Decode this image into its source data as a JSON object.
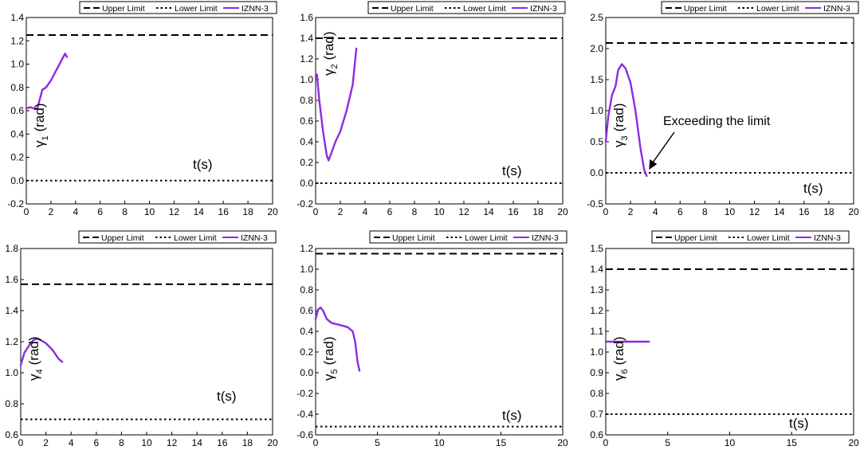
{
  "chart_data": [
    {
      "type": "line",
      "legend": [
        "Upper Limit",
        "Lower Limit",
        "IZNN-3"
      ],
      "legend_placement": "top",
      "xlabel": "t(s)",
      "ylabel": "γ1 (rad)",
      "ylabel_parts": {
        "sym": "γ",
        "sub": "1",
        "unit": "(rad)"
      },
      "xlim": [
        0,
        20
      ],
      "ylim": [
        -0.2,
        1.4
      ],
      "xticks": [
        0,
        2,
        4,
        6,
        8,
        10,
        12,
        14,
        16,
        18,
        20
      ],
      "yticks": [
        "-0.2",
        "0.0",
        "0.2",
        "0.4",
        "0.6",
        "0.8",
        "1.0",
        "1.2",
        "1.4"
      ],
      "upper_limit": 1.25,
      "lower_limit": 0.0,
      "series": [
        {
          "name": "IZNN-3",
          "x": [
            0,
            0.3,
            0.6,
            0.9,
            1.1,
            1.3,
            1.6,
            2.0,
            2.5,
            3.0,
            3.15,
            3.3
          ],
          "y": [
            0.62,
            0.63,
            0.62,
            0.62,
            0.7,
            0.78,
            0.8,
            0.86,
            0.96,
            1.06,
            1.09,
            1.06
          ]
        }
      ],
      "annotations": []
    },
    {
      "type": "line",
      "legend": [
        "Upper Limit",
        "Lower Limit",
        "IZNN-3"
      ],
      "legend_placement": "top",
      "xlabel": "t(s)",
      "ylabel": "γ2 (rad)",
      "ylabel_parts": {
        "sym": "γ",
        "sub": "2",
        "unit": "(rad)"
      },
      "xlim": [
        0,
        20
      ],
      "ylim": [
        -0.2,
        1.6
      ],
      "xticks": [
        0,
        2,
        4,
        6,
        8,
        10,
        12,
        14,
        16,
        18,
        20
      ],
      "yticks": [
        "-0.2",
        "0.0",
        "0.2",
        "0.4",
        "0.6",
        "0.8",
        "1.0",
        "1.2",
        "1.4",
        "1.6"
      ],
      "upper_limit": 1.4,
      "lower_limit": 0.0,
      "series": [
        {
          "name": "IZNN-3",
          "x": [
            0,
            0.1,
            0.3,
            0.6,
            0.9,
            1.05,
            1.3,
            1.6,
            2.0,
            2.5,
            3.0,
            3.3
          ],
          "y": [
            1.03,
            1.05,
            0.8,
            0.5,
            0.27,
            0.22,
            0.3,
            0.4,
            0.5,
            0.7,
            0.95,
            1.3
          ]
        }
      ],
      "annotations": []
    },
    {
      "type": "line",
      "legend": [
        "Upper Limit",
        "Lower Limit",
        "IZNN-3"
      ],
      "legend_placement": "top",
      "xlabel": "t(s)",
      "ylabel": "γ3 (rad)",
      "ylabel_parts": {
        "sym": "γ",
        "sub": "3",
        "unit": "(rad)"
      },
      "xlim": [
        0,
        20
      ],
      "ylim": [
        -0.5,
        2.5
      ],
      "xticks": [
        0,
        2,
        4,
        6,
        8,
        10,
        12,
        14,
        16,
        18,
        20
      ],
      "yticks": [
        "-0.5",
        "0.0",
        "0.5",
        "1.0",
        "1.5",
        "2.0",
        "2.5"
      ],
      "upper_limit": 2.09,
      "lower_limit": 0.0,
      "series": [
        {
          "name": "IZNN-3",
          "x": [
            0,
            0.2,
            0.5,
            0.8,
            1.0,
            1.3,
            1.6,
            2.0,
            2.4,
            2.8,
            3.1,
            3.3
          ],
          "y": [
            0.5,
            0.9,
            1.25,
            1.4,
            1.65,
            1.75,
            1.68,
            1.45,
            1.0,
            0.4,
            0.05,
            -0.05
          ]
        }
      ],
      "annotations": [
        {
          "text": "Exceeding the limit",
          "x": 3.3,
          "y": 0.0
        }
      ]
    },
    {
      "type": "line",
      "legend": [
        "Upper Limit",
        "Lower Limit",
        "IZNN-3"
      ],
      "legend_placement": "top",
      "xlabel": "t(s)",
      "ylabel": "γ4 (rad)",
      "ylabel_parts": {
        "sym": "γ",
        "sub": "4",
        "unit": "(rad)"
      },
      "xlim": [
        0,
        20
      ],
      "ylim": [
        0.6,
        1.8
      ],
      "xticks": [
        0,
        2,
        4,
        6,
        8,
        10,
        12,
        14,
        16,
        18,
        20
      ],
      "yticks": [
        "0.6",
        "0.8",
        "1.0",
        "1.2",
        "1.4",
        "1.6",
        "1.8"
      ],
      "upper_limit": 1.57,
      "lower_limit": 0.7,
      "series": [
        {
          "name": "IZNN-3",
          "x": [
            0,
            0.3,
            0.7,
            1.0,
            1.3,
            1.6,
            2.0,
            2.5,
            3.0,
            3.3
          ],
          "y": [
            1.05,
            1.13,
            1.18,
            1.21,
            1.22,
            1.21,
            1.19,
            1.15,
            1.09,
            1.07
          ]
        }
      ],
      "annotations": []
    },
    {
      "type": "line",
      "legend": [
        "Upper Limit",
        "Lower Limit",
        "IZNN-3"
      ],
      "legend_placement": "top",
      "xlabel": "t(s)",
      "ylabel": "γ5 (rad)",
      "ylabel_parts": {
        "sym": "γ",
        "sub": "5",
        "unit": "(rad)"
      },
      "xlim": [
        0,
        20
      ],
      "ylim": [
        -0.6,
        1.2
      ],
      "xticks": [
        0,
        5,
        10,
        15,
        20
      ],
      "yticks": [
        "-0.6",
        "-0.4",
        "-0.2",
        "0.0",
        "0.2",
        "0.4",
        "0.6",
        "0.8",
        "1.0",
        "1.2"
      ],
      "upper_limit": 1.15,
      "lower_limit": -0.52,
      "series": [
        {
          "name": "IZNN-3",
          "x": [
            0,
            0.2,
            0.4,
            0.6,
            0.9,
            1.3,
            2.0,
            2.6,
            3.0,
            3.2,
            3.4,
            3.55
          ],
          "y": [
            0.52,
            0.61,
            0.63,
            0.6,
            0.52,
            0.48,
            0.46,
            0.44,
            0.4,
            0.3,
            0.1,
            0.02
          ]
        }
      ],
      "annotations": []
    },
    {
      "type": "line",
      "legend": [
        "Upper Limit",
        "Lower Limit",
        "IZNN-3"
      ],
      "legend_placement": "top",
      "xlabel": "t(s)",
      "ylabel": "γ6 (rad)",
      "ylabel_parts": {
        "sym": "γ",
        "sub": "6",
        "unit": "(rad)"
      },
      "xlim": [
        0,
        20
      ],
      "ylim": [
        0.6,
        1.5
      ],
      "xticks": [
        0,
        5,
        10,
        15,
        20
      ],
      "yticks": [
        "0.6",
        "0.7",
        "0.8",
        "0.9",
        "1.0",
        "1.1",
        "1.2",
        "1.3",
        "1.4",
        "1.5"
      ],
      "upper_limit": 1.4,
      "lower_limit": 0.7,
      "series": [
        {
          "name": "IZNN-3",
          "x": [
            0,
            3.5
          ],
          "y": [
            1.05,
            1.05
          ]
        }
      ],
      "annotations": []
    }
  ],
  "colors": {
    "series": "#8a2be2",
    "limits": "#000000"
  }
}
